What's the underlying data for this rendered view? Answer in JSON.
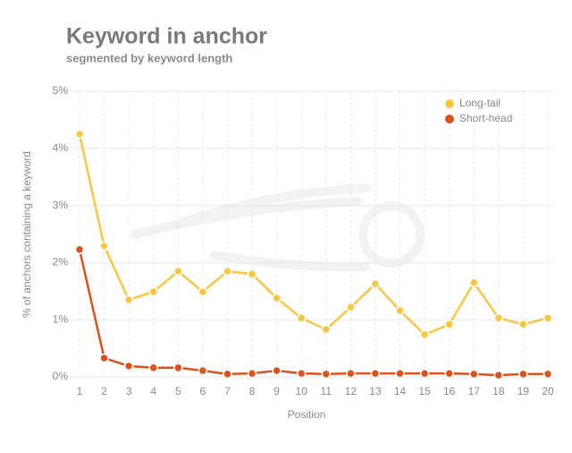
{
  "chart_data": {
    "type": "line",
    "title": "Keyword in anchor",
    "subtitle": "segmented by keyword length",
    "x_label": "Position",
    "y_label": "% of anchors containing a keyword",
    "x": [
      1,
      2,
      3,
      4,
      5,
      6,
      7,
      8,
      9,
      10,
      11,
      12,
      13,
      14,
      15,
      16,
      17,
      18,
      19,
      20
    ],
    "xlim": [
      1,
      20
    ],
    "xticks": [
      1,
      2,
      3,
      4,
      5,
      6,
      7,
      8,
      9,
      10,
      11,
      12,
      13,
      14,
      15,
      16,
      17,
      18,
      19,
      20
    ],
    "ylim": [
      0,
      5
    ],
    "yticks": [
      {
        "value": 0,
        "label": "0%"
      },
      {
        "value": 1,
        "label": "1%"
      },
      {
        "value": 2,
        "label": "2%"
      },
      {
        "value": 3,
        "label": "3%"
      },
      {
        "value": 4,
        "label": "4%"
      },
      {
        "value": 5,
        "label": "5%"
      }
    ],
    "grid": true,
    "legend": "top-right",
    "series": [
      {
        "name": "Long-tail",
        "color": "#f7c744",
        "values": [
          4.25,
          2.29,
          1.35,
          1.49,
          1.85,
          1.49,
          1.85,
          1.8,
          1.38,
          1.03,
          0.83,
          1.22,
          1.63,
          1.16,
          0.74,
          0.92,
          1.65,
          1.03,
          0.92,
          1.03
        ]
      },
      {
        "name": "Short-head",
        "color": "#d9531e",
        "values": [
          2.23,
          0.33,
          0.19,
          0.16,
          0.16,
          0.11,
          0.05,
          0.06,
          0.11,
          0.06,
          0.05,
          0.06,
          0.06,
          0.06,
          0.06,
          0.06,
          0.05,
          0.03,
          0.05,
          0.05
        ]
      }
    ]
  }
}
